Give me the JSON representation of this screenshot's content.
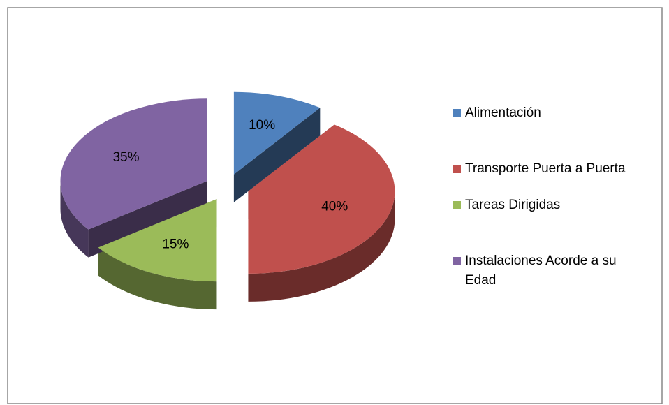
{
  "chart_data": {
    "type": "pie",
    "categories": [
      "Alimentación",
      "Transporte Puerta a Puerta",
      "Tareas Dirigidas",
      "Instalaciones Acorde a su Edad"
    ],
    "values": [
      10,
      40,
      15,
      35
    ],
    "value_labels": [
      "10%",
      "40%",
      "15%",
      "35%"
    ],
    "colors": [
      "#4f81bd",
      "#c0504d",
      "#9bbb59",
      "#8064a2"
    ],
    "legend": "right"
  }
}
